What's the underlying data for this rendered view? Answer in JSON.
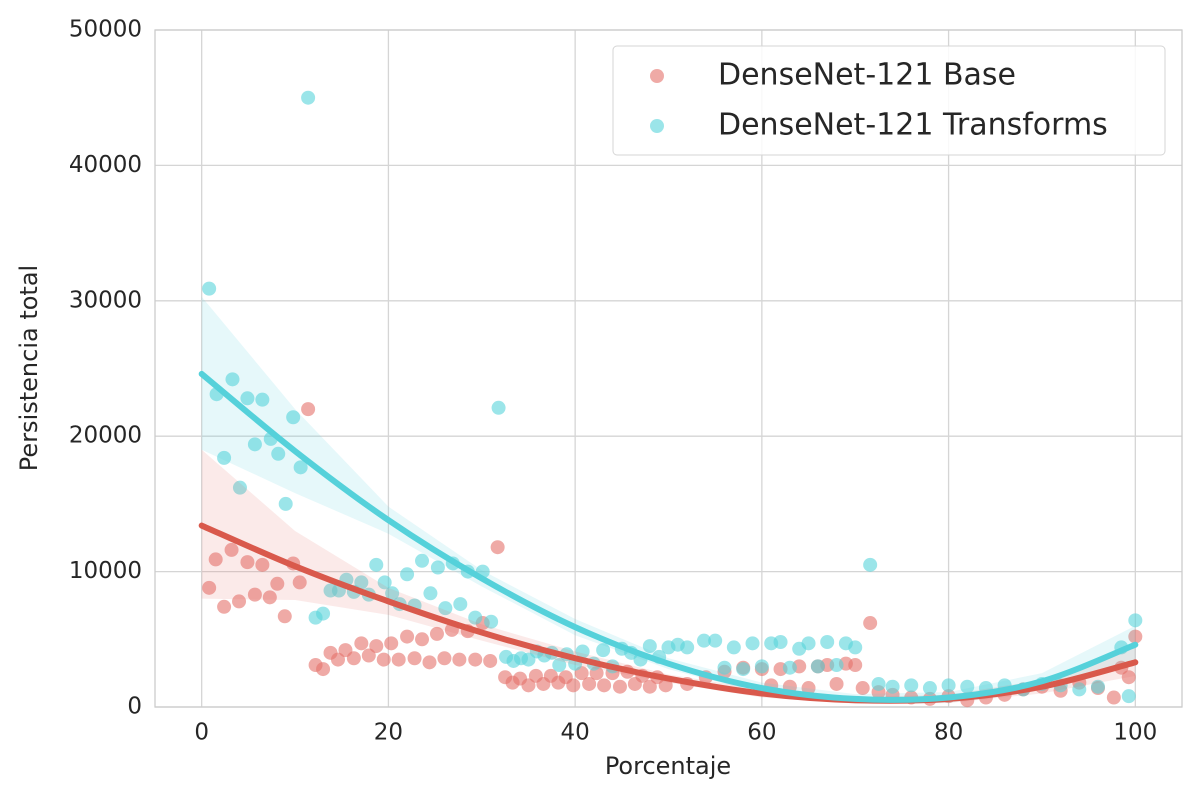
{
  "chart_data": {
    "type": "scatter",
    "x_label": "Porcentaje",
    "y_label": "Persistencia total",
    "xlim": [
      -5,
      105
    ],
    "ylim": [
      0,
      50000
    ],
    "xticks": [
      0,
      20,
      40,
      60,
      80,
      100
    ],
    "yticks": [
      0,
      10000,
      20000,
      30000,
      40000,
      50000
    ],
    "grid": true,
    "legend": "upper right",
    "fit_x": [
      0,
      10,
      20,
      30,
      40,
      50,
      60,
      70,
      80,
      90,
      100
    ],
    "series": [
      {
        "name": "DenseNet-121 Base",
        "color": "#e4726a",
        "line_color": "#d9594c",
        "x": [
          0.8,
          1.5,
          2.4,
          3.2,
          4,
          4.9,
          5.7,
          6.5,
          7.3,
          8.1,
          8.9,
          9.8,
          10.5,
          11.4,
          12.2,
          13,
          13.8,
          14.6,
          15.4,
          16.3,
          17.1,
          17.9,
          18.7,
          19.5,
          20.3,
          21.1,
          22,
          22.8,
          23.6,
          24.4,
          25.2,
          26,
          26.8,
          27.6,
          28.5,
          29.3,
          30.1,
          30.9,
          31.7,
          32.5,
          33.3,
          34.1,
          35,
          35.8,
          36.6,
          37.4,
          38.2,
          39,
          39.8,
          40.7,
          41.5,
          42.3,
          43.1,
          44,
          44.8,
          45.6,
          46.4,
          47.2,
          48,
          48.8,
          49.7,
          52,
          54,
          56,
          58,
          60,
          61,
          62,
          63,
          64,
          65,
          66,
          67,
          68,
          69,
          70,
          70.8,
          71.6,
          72.5,
          74,
          76,
          78,
          80,
          82,
          84,
          86,
          88,
          90,
          92,
          94,
          96,
          97.7,
          98.5,
          99.3,
          100
        ],
        "values": [
          8800,
          10900,
          7400,
          11600,
          7800,
          10700,
          8300,
          10500,
          8100,
          9100,
          6700,
          10600,
          9200,
          22000,
          3100,
          2800,
          4000,
          3500,
          4200,
          3600,
          4700,
          3800,
          4500,
          3500,
          4700,
          3500,
          5200,
          3600,
          5000,
          3300,
          5400,
          3600,
          5700,
          3500,
          5600,
          3500,
          6200,
          3400,
          11800,
          2200,
          1800,
          2100,
          1600,
          2300,
          1700,
          2300,
          1800,
          2200,
          1600,
          2500,
          1700,
          2500,
          1600,
          2500,
          1500,
          2600,
          1700,
          2300,
          1500,
          2200,
          1600,
          1700,
          2200,
          2600,
          2900,
          2800,
          1600,
          2800,
          1500,
          3000,
          1400,
          3000,
          3100,
          1700,
          3200,
          3100,
          1400,
          6200,
          1100,
          900,
          700,
          600,
          800,
          500,
          700,
          900,
          1300,
          1500,
          1200,
          1800,
          1400,
          700,
          2900,
          2200,
          5200
        ],
        "fit": {
          "values": [
            13400,
            10400,
            7800,
            5500,
            3600,
            2100,
            1000,
            500,
            600,
            1500,
            3300
          ],
          "lower": [
            8000,
            7900,
            6800,
            4900,
            3100,
            1800,
            700,
            250,
            300,
            1000,
            2300
          ],
          "upper": [
            19000,
            13000,
            8800,
            6100,
            4100,
            2400,
            1300,
            750,
            900,
            2000,
            4400
          ]
        }
      },
      {
        "name": "DenseNet-121 Transforms",
        "color": "#58d3db",
        "line_color": "#55d1da",
        "x": [
          0.8,
          1.6,
          2.4,
          3.3,
          4.1,
          4.9,
          5.7,
          6.5,
          7.4,
          8.2,
          9,
          9.8,
          10.6,
          11.4,
          12.2,
          13,
          13.8,
          14.7,
          15.5,
          16.3,
          17.1,
          17.9,
          18.7,
          19.6,
          20.4,
          21.2,
          22,
          22.8,
          23.6,
          24.5,
          25.3,
          26.1,
          26.9,
          27.7,
          28.5,
          29.3,
          30.1,
          31,
          31.8,
          32.6,
          33.4,
          34.2,
          35,
          35.9,
          36.7,
          37.5,
          38.3,
          39.1,
          40,
          40.8,
          42,
          43,
          44,
          45,
          46,
          47,
          48,
          49,
          50,
          51,
          52,
          53.8,
          55,
          56,
          57,
          58,
          59,
          60,
          61,
          62,
          63,
          64,
          65,
          66,
          67,
          68,
          69,
          70,
          71.6,
          72.5,
          74,
          76,
          78,
          80,
          82,
          84,
          86,
          88,
          90,
          92,
          94,
          96,
          98.5,
          99.3,
          100
        ],
        "values": [
          30900,
          23100,
          18400,
          24200,
          16200,
          22800,
          19400,
          22700,
          19800,
          18700,
          15000,
          21400,
          17700,
          45000,
          6600,
          6900,
          8600,
          8600,
          9400,
          8500,
          9200,
          8300,
          10500,
          9200,
          8400,
          7600,
          9800,
          7500,
          10800,
          8400,
          10300,
          7300,
          10600,
          7600,
          10000,
          6600,
          10000,
          6300,
          22100,
          3700,
          3400,
          3600,
          3500,
          4100,
          3800,
          4000,
          3100,
          3900,
          3200,
          4100,
          3200,
          4200,
          3000,
          4300,
          4000,
          3500,
          4500,
          3700,
          4400,
          4600,
          4400,
          4900,
          4900,
          2900,
          4400,
          2800,
          4700,
          3000,
          4700,
          4800,
          2900,
          4300,
          4700,
          3000,
          4800,
          3100,
          4700,
          4400,
          10500,
          1700,
          1500,
          1600,
          1400,
          1600,
          1500,
          1400,
          1600,
          1300,
          1700,
          1600,
          1300,
          1500,
          4400,
          800,
          6400
        ],
        "fit": {
          "values": [
            24600,
            18900,
            13800,
            9500,
            5900,
            3200,
            1400,
            600,
            700,
            1900,
            4600
          ],
          "lower": [
            19000,
            15800,
            12800,
            8900,
            5300,
            2800,
            1000,
            250,
            300,
            1300,
            3300
          ],
          "upper": [
            30300,
            22000,
            14800,
            10100,
            6500,
            3600,
            1800,
            950,
            1100,
            2500,
            6000
          ]
        }
      }
    ]
  }
}
